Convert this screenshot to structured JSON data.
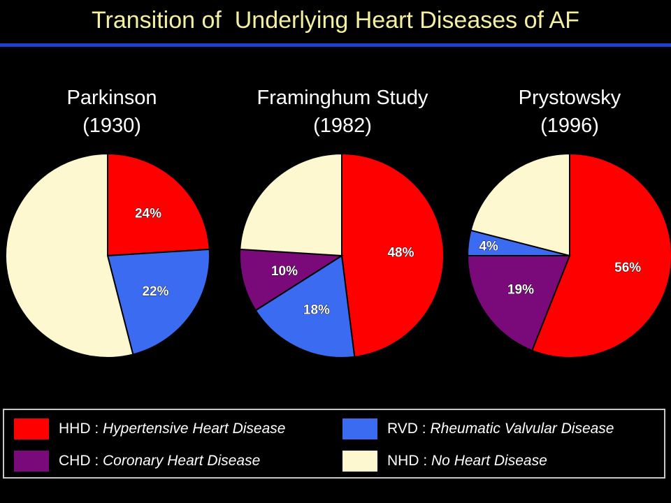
{
  "title": "Transition of  Underlying Heart Diseases of AF",
  "colors": {
    "HHD": "#ff0000",
    "RVD": "#3a6bf0",
    "CHD": "#7a0a7a",
    "NHD": "#fdf8d0"
  },
  "chart_data": [
    {
      "type": "pie",
      "title_line1": "Parkinson",
      "title_line2": "(1930)",
      "slices": [
        {
          "key": "HHD",
          "value": 24,
          "label": "24%"
        },
        {
          "key": "RVD",
          "value": 22,
          "label": "22%"
        },
        {
          "key": "NHD",
          "value": 54,
          "label": ""
        }
      ]
    },
    {
      "type": "pie",
      "title_line1": "Framinghum Study",
      "title_line2": "(1982)",
      "slices": [
        {
          "key": "HHD",
          "value": 48,
          "label": "48%"
        },
        {
          "key": "RVD",
          "value": 18,
          "label": "18%"
        },
        {
          "key": "CHD",
          "value": 10,
          "label": "10%"
        },
        {
          "key": "NHD",
          "value": 24,
          "label": ""
        }
      ]
    },
    {
      "type": "pie",
      "title_line1": "Prystowsky",
      "title_line2": "(1996)",
      "slices": [
        {
          "key": "HHD",
          "value": 56,
          "label": "56%"
        },
        {
          "key": "CHD",
          "value": 19,
          "label": "19%"
        },
        {
          "key": "RVD",
          "value": 4,
          "label": "4%"
        },
        {
          "key": "NHD",
          "value": 21,
          "label": ""
        }
      ]
    }
  ],
  "legend": [
    {
      "key": "HHD",
      "abbr": "HHD",
      "sep": " : ",
      "desc": "Hypertensive Heart Disease"
    },
    {
      "key": "RVD",
      "abbr": "RVD",
      "sep": " : ",
      "desc": "Rheumatic Valvular Disease"
    },
    {
      "key": "CHD",
      "abbr": "CHD",
      "sep": " : ",
      "desc": "Coronary Heart Disease"
    },
    {
      "key": "NHD",
      "abbr": "NHD",
      "sep": " : ",
      "desc": "No Heart Disease"
    }
  ]
}
